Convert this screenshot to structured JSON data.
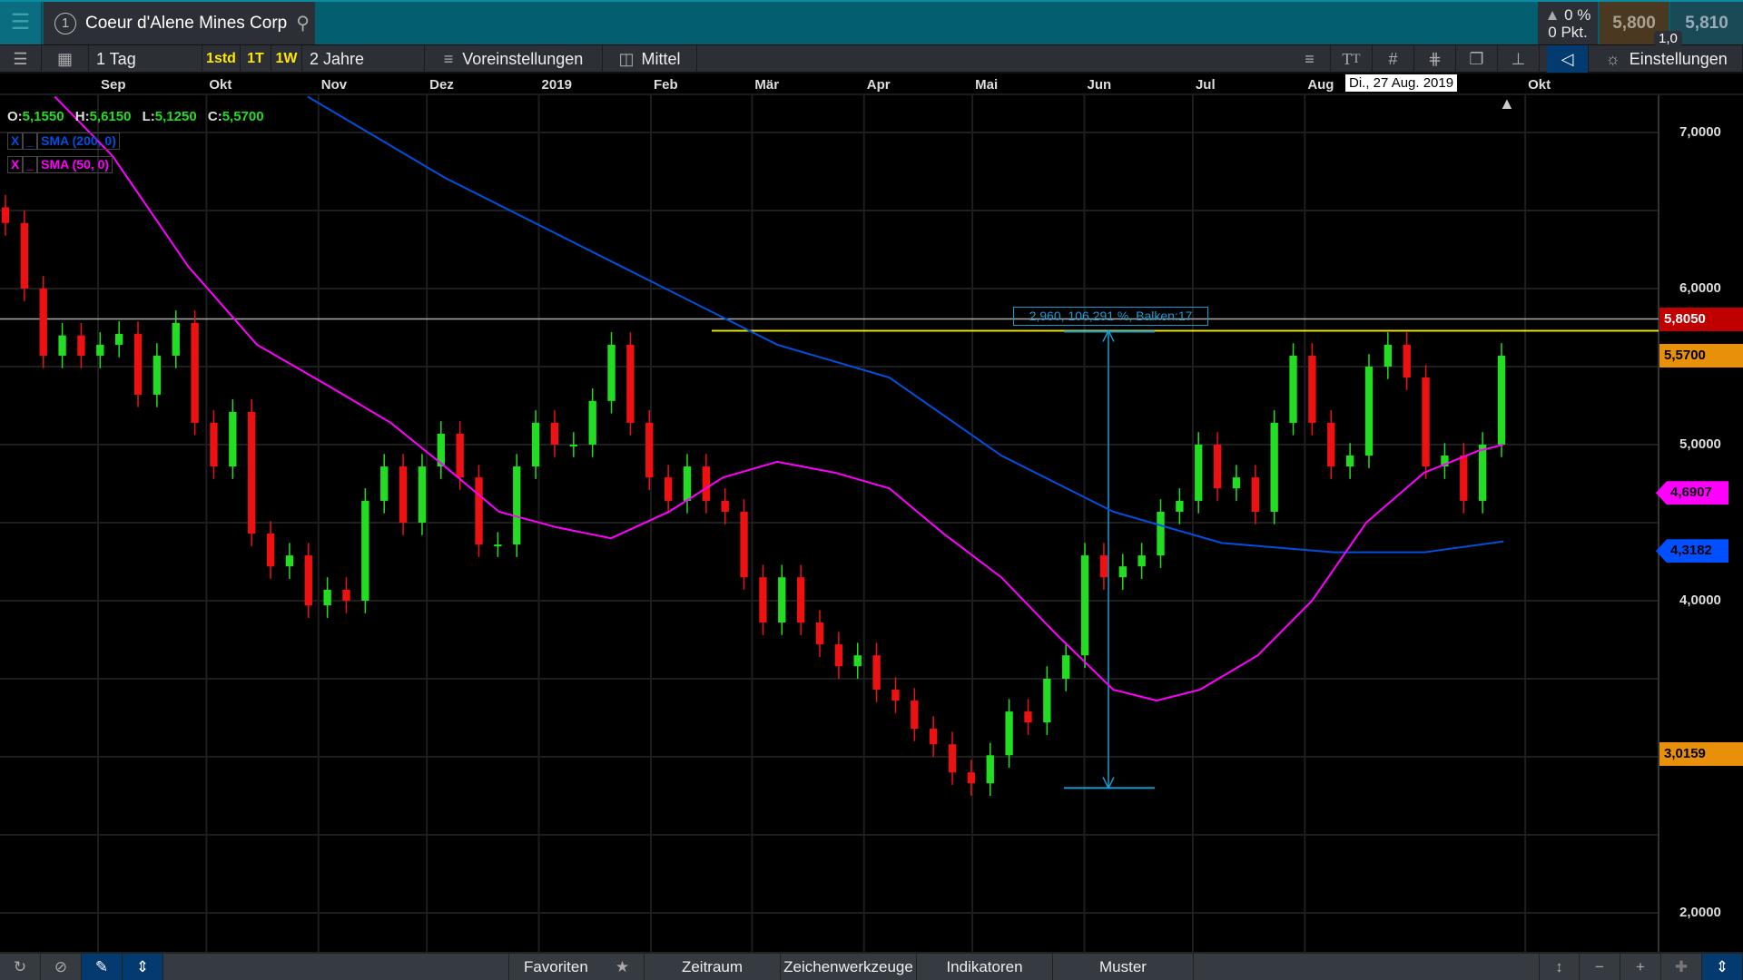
{
  "header": {
    "menu_icon": "hamburger-icon",
    "symbol_index": "1",
    "symbol": "Coeur d'Alene Mines Corp",
    "change_pct": "0 %",
    "change_pts": "0 Pkt.",
    "bid": "5,800",
    "ask": "5,810",
    "spread": "1,0"
  },
  "toolbar": {
    "interval": "1 Tag",
    "q1": "1std",
    "q2": "1T",
    "q3": "1W",
    "range": "2 Jahre",
    "presets": "Voreinstellungen",
    "chart_type": "Mittel",
    "settings": "Einstellungen"
  },
  "crosshair_date": "Di., 27 Aug. 2019",
  "ohlc": {
    "o_label": "O:",
    "o": "5,1550",
    "h_label": "H:",
    "h": "5,6150",
    "l_label": "L:",
    "l": "5,1250",
    "c_label": "C:",
    "c": "5,5700"
  },
  "indicators": [
    {
      "label": "SMA (200, 0)",
      "color": "#0050e0",
      "remove": "X"
    },
    {
      "label": "SMA (50, 0)",
      "color": "#ff00ff",
      "remove": "X"
    }
  ],
  "measure_label": "2,960, 106,291 %, Balken:17",
  "bottom": {
    "favorites": "Favoriten",
    "period": "Zeitraum",
    "drawing": "Zeichenwerkzeuge",
    "indicators": "Indikatoren",
    "patterns": "Muster"
  },
  "chart_data": {
    "type": "candlestick",
    "x_ticks": [
      {
        "label": "Sep",
        "date": "2018-09-01"
      },
      {
        "label": "Okt",
        "date": "2018-10-01"
      },
      {
        "label": "Nov",
        "date": "2018-11-01"
      },
      {
        "label": "Dez",
        "date": "2018-12-01"
      },
      {
        "label": "2019",
        "date": "2019-01-01"
      },
      {
        "label": "Feb",
        "date": "2019-02-01"
      },
      {
        "label": "Mär",
        "date": "2019-03-01"
      },
      {
        "label": "Apr",
        "date": "2019-04-01"
      },
      {
        "label": "Mai",
        "date": "2019-05-01"
      },
      {
        "label": "Jun",
        "date": "2019-06-01"
      },
      {
        "label": "Jul",
        "date": "2019-07-01"
      },
      {
        "label": "Aug",
        "date": "2019-08-01"
      },
      {
        "label": "Okt",
        "date": "2019-10-01"
      }
    ],
    "y_ticks": [
      "7,0000",
      "6,0000",
      "5,0000",
      "4,0000",
      "2,0000"
    ],
    "y_tick_values": [
      7,
      6,
      5,
      4,
      2
    ],
    "ylim": [
      1.8,
      7.4
    ],
    "grid": true,
    "closes": [
      6.42,
      6.0,
      5.57,
      5.7,
      5.57,
      5.64,
      5.71,
      5.32,
      5.57,
      5.78,
      5.14,
      4.86,
      5.21,
      4.43,
      4.22,
      4.29,
      3.97,
      4.07,
      4.0,
      4.64,
      4.86,
      4.5,
      4.86,
      5.07,
      4.79,
      4.36,
      4.36,
      4.86,
      5.14,
      5.0,
      5.0,
      5.28,
      5.64,
      5.14,
      4.79,
      4.64,
      4.86,
      4.64,
      4.57,
      4.15,
      3.86,
      4.15,
      3.86,
      3.72,
      3.58,
      3.65,
      3.43,
      3.36,
      3.18,
      3.08,
      2.9,
      2.83,
      3.01,
      3.29,
      3.22,
      3.5,
      3.65,
      4.29,
      4.15,
      4.22,
      4.29,
      4.57,
      4.64,
      5.0,
      4.72,
      4.79,
      4.57,
      5.14,
      5.57,
      5.14,
      4.86,
      4.93,
      5.5,
      5.64,
      5.43,
      4.86,
      4.93,
      4.64,
      5.0,
      5.57
    ],
    "series": [
      {
        "name": "SMA (200, 0)",
        "color": "#0050e0",
        "points": [
          [
            "2018-10-29",
            7.23
          ],
          [
            "2018-12-06",
            6.71
          ],
          [
            "2019-01-24",
            6.14
          ],
          [
            "2019-03-08",
            5.64
          ],
          [
            "2019-04-08",
            5.43
          ],
          [
            "2019-05-09",
            4.93
          ],
          [
            "2019-06-09",
            4.57
          ],
          [
            "2019-07-09",
            4.37
          ],
          [
            "2019-08-09",
            4.31
          ],
          [
            "2019-09-03",
            4.31
          ],
          [
            "2019-09-25",
            4.38
          ]
        ]
      },
      {
        "name": "SMA (50, 0)",
        "color": "#ff00ff",
        "points": [
          [
            "2018-08-20",
            7.23
          ],
          [
            "2018-09-05",
            6.85
          ],
          [
            "2018-09-26",
            6.14
          ],
          [
            "2018-10-15",
            5.64
          ],
          [
            "2018-11-05",
            5.36
          ],
          [
            "2018-11-21",
            5.14
          ],
          [
            "2018-12-06",
            4.86
          ],
          [
            "2018-12-21",
            4.57
          ],
          [
            "2019-01-06",
            4.47
          ],
          [
            "2019-01-21",
            4.4
          ],
          [
            "2019-02-06",
            4.57
          ],
          [
            "2019-02-21",
            4.79
          ],
          [
            "2019-03-08",
            4.89
          ],
          [
            "2019-03-24",
            4.82
          ],
          [
            "2019-04-08",
            4.72
          ],
          [
            "2019-04-23",
            4.43
          ],
          [
            "2019-05-09",
            4.15
          ],
          [
            "2019-05-24",
            3.79
          ],
          [
            "2019-06-09",
            3.43
          ],
          [
            "2019-06-21",
            3.36
          ],
          [
            "2019-07-03",
            3.43
          ],
          [
            "2019-07-19",
            3.65
          ],
          [
            "2019-08-03",
            4.0
          ],
          [
            "2019-08-18",
            4.5
          ],
          [
            "2019-09-03",
            4.82
          ],
          [
            "2019-09-18",
            4.96
          ],
          [
            "2019-09-25",
            5.0
          ]
        ]
      }
    ],
    "hlines": [
      {
        "value": 5.805,
        "color": "#aaaaaa"
      },
      {
        "value": 5.73,
        "color": "#e8e000"
      }
    ],
    "price_tags": [
      {
        "text": "5,8050",
        "value": 5.805,
        "bg": "#c00000",
        "fg": "#ffffff"
      },
      {
        "text": "5,5700",
        "value": 5.57,
        "bg": "#e8900a",
        "fg": "#000000"
      },
      {
        "text": "4,6907",
        "value": 4.6907,
        "bg": "#ff00ff",
        "fg": "#000000"
      },
      {
        "text": "4,3182",
        "value": 4.3182,
        "bg": "#0050ff",
        "fg": "#000000"
      },
      {
        "text": "3,0159",
        "value": 3.0159,
        "bg": "#e8900a",
        "fg": "#000000"
      }
    ],
    "up_color": "#22dd22",
    "down_color": "#ee1111"
  }
}
